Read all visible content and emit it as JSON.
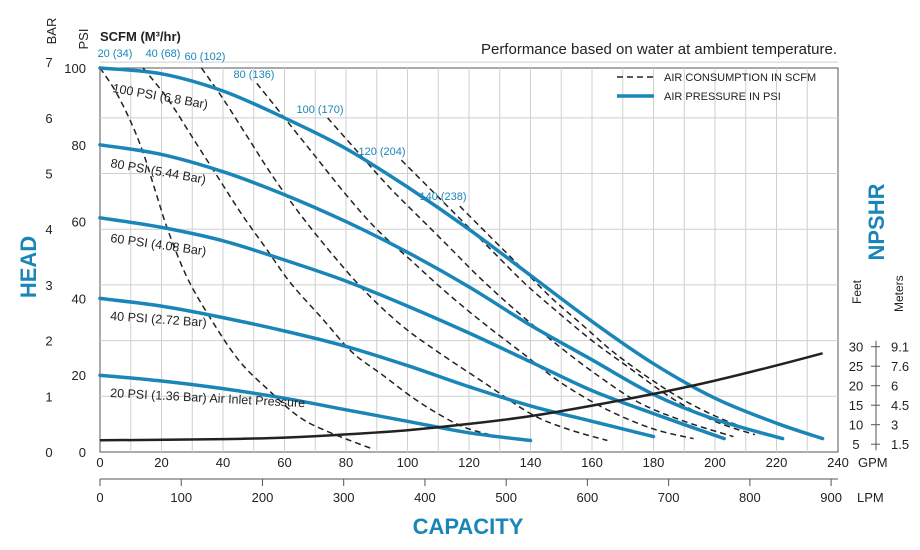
{
  "chart_data": {
    "type": "line",
    "note": "Performance based on water at ambient temperature.",
    "xlabel": "CAPACITY",
    "ylabel": "HEAD",
    "y2label": "NPSHR",
    "x_gpm": {
      "unit": "GPM",
      "ticks": [
        0,
        20,
        40,
        60,
        80,
        100,
        120,
        140,
        160,
        180,
        200,
        220,
        240
      ],
      "range": [
        0,
        240
      ]
    },
    "x_lpm": {
      "unit": "LPM",
      "ticks": [
        0,
        100,
        200,
        300,
        400,
        500,
        600,
        700,
        800,
        900
      ]
    },
    "y_psi": {
      "unit": "PSI",
      "ticks": [
        0,
        20,
        40,
        60,
        80,
        100
      ],
      "range": [
        0,
        100
      ]
    },
    "y_bar": {
      "unit": "BAR",
      "ticks": [
        0,
        1,
        2,
        3,
        4,
        5,
        6,
        7
      ]
    },
    "npshr": {
      "feet_label": "Feet",
      "meters_label": "Meters",
      "feet_ticks": [
        5,
        10,
        15,
        20,
        25,
        30
      ],
      "meters_ticks": [
        "1.5",
        "3",
        "4.5",
        "6",
        "7.6",
        "9.1"
      ]
    },
    "scfm_header": "SCFM (M³/hr)",
    "legend": [
      {
        "label": "AIR CONSUMPTION IN SCFM",
        "style": "dashed",
        "color": "#222222"
      },
      {
        "label": "AIR PRESSURE IN PSI",
        "style": "solid",
        "color": "#1a86b8"
      }
    ],
    "colors": {
      "pressure": "#1a86b8",
      "consumption": "#222222",
      "npshr": "#222222",
      "accent": "#1a86b8"
    },
    "pressure_series": [
      {
        "name": "100 PSI (6.8 Bar)",
        "x": [
          0,
          20,
          40,
          60,
          80,
          100,
          120,
          140,
          160,
          180,
          200,
          220,
          235
        ],
        "y": [
          100,
          98.5,
          94,
          87,
          79,
          69,
          58,
          46,
          34,
          23,
          14,
          7.5,
          3.5
        ]
      },
      {
        "name": "80 PSI (5.44 Bar)",
        "x": [
          0,
          20,
          40,
          60,
          80,
          100,
          120,
          140,
          160,
          180,
          200,
          222
        ],
        "y": [
          80,
          77.5,
          73,
          67,
          60,
          52,
          43,
          33,
          24,
          15,
          8.5,
          3.5
        ]
      },
      {
        "name": "60 PSI (4.08 Bar)",
        "x": [
          0,
          20,
          40,
          60,
          80,
          100,
          120,
          140,
          160,
          180,
          203
        ],
        "y": [
          61,
          58.5,
          55,
          50,
          44.5,
          38,
          31,
          23.5,
          16,
          10,
          3.5
        ]
      },
      {
        "name": "40 PSI (2.72 Bar)",
        "x": [
          0,
          20,
          40,
          60,
          80,
          100,
          120,
          140,
          160,
          180
        ],
        "y": [
          40,
          38,
          35,
          31.5,
          27.5,
          22.5,
          17,
          12,
          8,
          4
        ]
      },
      {
        "name": "20 PSI (1.36 Bar) Air Inlet Pressure",
        "x": [
          0,
          20,
          40,
          60,
          80,
          100,
          120,
          140
        ],
        "y": [
          20,
          18.5,
          16.5,
          14,
          11,
          8,
          5,
          3
        ]
      }
    ],
    "consumption_series": [
      {
        "name": "20 (34)",
        "x": [
          0,
          5,
          10,
          14,
          18,
          22,
          28,
          35,
          45,
          55,
          65,
          75,
          88
        ],
        "y": [
          100,
          94,
          86,
          78,
          68,
          58,
          46,
          36,
          24,
          16,
          9,
          5,
          1
        ]
      },
      {
        "name": "40 (68)",
        "x": [
          14,
          22,
          30,
          38,
          46,
          54,
          62,
          72,
          82,
          92,
          102,
          112,
          120,
          132
        ],
        "y": [
          100,
          92,
          82,
          72,
          62,
          53,
          44,
          35,
          26,
          20,
          14,
          9,
          6,
          3.5
        ]
      },
      {
        "name": "60 (102)",
        "x": [
          33,
          40,
          48,
          56,
          65,
          75,
          86,
          98,
          110,
          125,
          140,
          152,
          165
        ],
        "y": [
          100,
          92,
          82,
          72,
          62,
          52,
          42,
          33,
          26,
          18,
          10,
          6,
          3
        ]
      },
      {
        "name": "80 (136)",
        "x": [
          51,
          60,
          70,
          80,
          90,
          101,
          112,
          124,
          137,
          150,
          165,
          180,
          193
        ],
        "y": [
          96,
          87,
          77,
          67,
          58,
          50,
          42,
          34,
          26,
          18,
          11,
          6,
          3.5
        ]
      },
      {
        "name": "100 (170)",
        "x": [
          74,
          84,
          94,
          104,
          114,
          124,
          135,
          147,
          160,
          175,
          190,
          206
        ],
        "y": [
          87,
          78,
          69,
          61,
          53,
          45,
          37,
          29,
          21,
          13,
          8,
          4
        ]
      },
      {
        "name": "120 (204)",
        "x": [
          98,
          108,
          118,
          128,
          138,
          148,
          160,
          172,
          186,
          200,
          213
        ],
        "y": [
          76,
          68,
          60,
          52,
          44,
          37,
          29,
          22,
          14,
          8,
          4.5
        ]
      },
      {
        "name": "140 (238)",
        "x": [
          117,
          127,
          137,
          147,
          157,
          167,
          179,
          191,
          204,
          217
        ],
        "y": [
          64,
          56,
          48,
          40,
          33,
          26,
          19,
          13,
          8,
          4.5
        ]
      }
    ],
    "npshr_series": {
      "name": "NPSHR",
      "x": [
        0,
        40,
        60,
        80,
        100,
        120,
        140,
        160,
        180,
        200,
        220,
        235
      ],
      "y_feet": [
        6,
        6.3,
        6.7,
        7.5,
        8.6,
        10.2,
        12.2,
        14.9,
        17.9,
        21.3,
        25.2,
        28.3
      ]
    }
  }
}
